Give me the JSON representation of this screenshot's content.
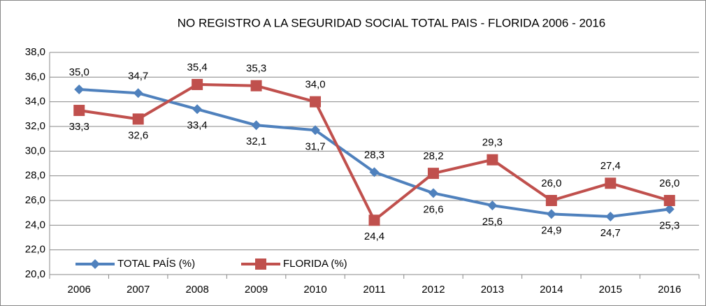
{
  "chart_data": {
    "type": "line",
    "title": "NO REGISTRO A LA SEGURIDAD SOCIAL TOTAL PAIS - FLORIDA 2006 - 2016",
    "categories": [
      "2006",
      "2007",
      "2008",
      "2009",
      "2010",
      "2011",
      "2012",
      "2013",
      "2014",
      "2015",
      "2016"
    ],
    "series": [
      {
        "name": "TOTAL PAÍS (%)",
        "color": "#4f81bd",
        "marker": "diamond",
        "values": [
          35.0,
          34.7,
          33.4,
          32.1,
          31.7,
          28.3,
          26.6,
          25.6,
          24.9,
          24.7,
          25.3
        ],
        "value_labels": [
          "35,0",
          "34,7",
          "33,4",
          "32,1",
          "31,7",
          "28,3",
          "26,6",
          "25,6",
          "24,9",
          "24,7",
          "25,3"
        ]
      },
      {
        "name": "FLORIDA (%)",
        "color": "#c0504d",
        "marker": "square",
        "values": [
          33.3,
          32.6,
          35.4,
          35.3,
          34.0,
          24.4,
          28.2,
          29.3,
          26.0,
          27.4,
          26.0
        ],
        "value_labels": [
          "33,3",
          "32,6",
          "35,4",
          "35,3",
          "34,0",
          "24,4",
          "28,2",
          "29,3",
          "26,0",
          "27,4",
          "26,0"
        ]
      }
    ],
    "ylim": [
      20,
      38
    ],
    "yticks": [
      {
        "value": 20,
        "label": "20,0"
      },
      {
        "value": 22,
        "label": "22,0"
      },
      {
        "value": 24,
        "label": "24,0"
      },
      {
        "value": 26,
        "label": "26,0"
      },
      {
        "value": 28,
        "label": "28,0"
      },
      {
        "value": 30,
        "label": "30,0"
      },
      {
        "value": 32,
        "label": "32,0"
      },
      {
        "value": 34,
        "label": "34,0"
      },
      {
        "value": 36,
        "label": "36,0"
      },
      {
        "value": 38,
        "label": "38,0"
      }
    ],
    "grid": true,
    "legend": "bottom-left"
  }
}
